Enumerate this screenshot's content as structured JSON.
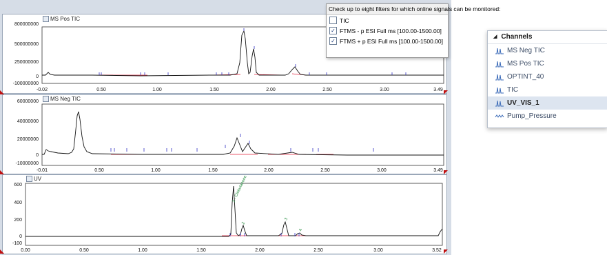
{
  "colors": {
    "trace": "#111111",
    "baseline": "#e0203a",
    "marker": "#3030c0",
    "annotation": "#1f8a3a",
    "accent_corner": "#c01010"
  },
  "panels": [
    {
      "title": "MS Pos TIC",
      "y_ticks": [
        "800000000",
        "500000000",
        "250000000",
        "0",
        "-100000000"
      ],
      "x_ticks": [
        "-0.02",
        "0.50",
        "1.00",
        "1.50",
        "2.00",
        "2.50",
        "3.00",
        "3.49"
      ]
    },
    {
      "title": "MS Neg TIC",
      "y_ticks": [
        "60000000",
        "40000000",
        "20000000",
        "0",
        "-10000000"
      ],
      "x_ticks": [
        "-0.01",
        "0.50",
        "1.00",
        "1.50",
        "2.00",
        "2.50",
        "3.00",
        "3.49"
      ]
    },
    {
      "title": "UV",
      "y_ticks": [
        "600",
        "400",
        "200",
        "0",
        "-100"
      ],
      "x_ticks": [
        "0.00",
        "0.50",
        "1.00",
        "1.50",
        "2.00",
        "2.50",
        "3.00",
        "3.52"
      ],
      "peak_labels": [
        "1 - Clobutasone",
        "2",
        "3",
        "4"
      ]
    }
  ],
  "filters": {
    "header": "Check up to eight filters for which online signals can be monitored:",
    "items": [
      {
        "label": "TIC",
        "checked": false
      },
      {
        "label": "FTMS - p ESI Full ms [100.00-1500.00]",
        "checked": true
      },
      {
        "label": "FTMS + p ESI Full ms [100.00-1500.00]",
        "checked": true
      }
    ]
  },
  "channels": {
    "header": "Channels",
    "items": [
      {
        "label": "MS Neg TIC",
        "icon": "chromatogram-icon",
        "selected": false
      },
      {
        "label": "MS Pos TIC",
        "icon": "chromatogram-icon",
        "selected": false
      },
      {
        "label": "OPTINT_40",
        "icon": "chromatogram-icon",
        "selected": false
      },
      {
        "label": "TIC",
        "icon": "chromatogram-icon",
        "selected": false
      },
      {
        "label": "UV_VIS_1",
        "icon": "chromatogram-icon",
        "selected": true
      },
      {
        "label": "Pump_Pressure",
        "icon": "pressure-trace-icon",
        "selected": false
      }
    ]
  }
}
